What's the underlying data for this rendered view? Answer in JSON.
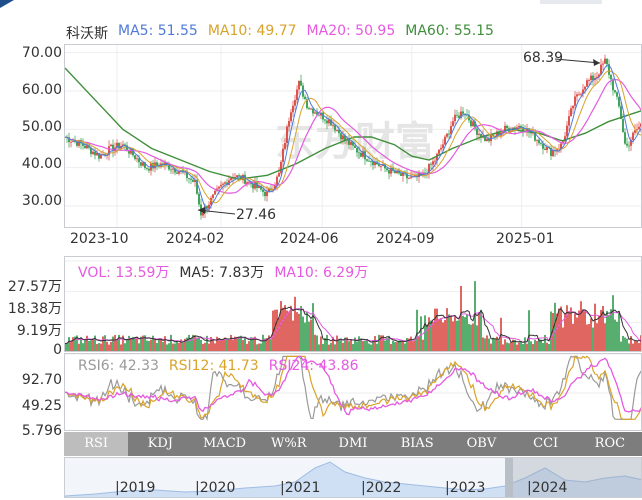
{
  "window": {
    "title": "科沃斯"
  },
  "main_legend": {
    "name": "科沃斯",
    "items": [
      {
        "label": "MA5: 51.55",
        "color": "#4f7bd8"
      },
      {
        "label": "MA10: 49.77",
        "color": "#d9a32b"
      },
      {
        "label": "MA20: 50.95",
        "color": "#e55ae0"
      },
      {
        "label": "MA60: 55.15",
        "color": "#3f8f3a"
      }
    ]
  },
  "watermark": "东方财富",
  "vol_legend": {
    "items": [
      {
        "label": "VOL: 13.59万",
        "color": "#e55ae0"
      },
      {
        "label": "MA5: 7.83万",
        "color": "#333333"
      },
      {
        "label": "MA10: 6.29万",
        "color": "#e55ae0"
      }
    ]
  },
  "rsi_legend": {
    "items": [
      {
        "label": "RSI6: 42.33",
        "color": "#9a9a9a"
      },
      {
        "label": "RSI12: 41.73",
        "color": "#d9a32b"
      },
      {
        "label": "RSI24: 43.86",
        "color": "#e55ae0"
      }
    ]
  },
  "tabs": [
    "RSI",
    "KDJ",
    "MACD",
    "W%R",
    "DMI",
    "BIAS",
    "OBV",
    "CCI",
    "ROC"
  ],
  "active_tab": "RSI",
  "navigator": {
    "years": [
      "2019",
      "2020",
      "2021",
      "2022",
      "2023",
      "2024"
    ]
  },
  "chart_data": [
    {
      "type": "line",
      "title": "科沃斯",
      "x_ticks": [
        "2023-10",
        "2024-02",
        "2024-06",
        "2024-09",
        "2025-01"
      ],
      "y_ticks": [
        "70.00",
        "60.00",
        "50.00",
        "40.00",
        "30.00"
      ],
      "ylim": [
        24,
        72
      ],
      "annotations": [
        {
          "text": "68.39",
          "value": 68.39,
          "type": "high"
        },
        {
          "text": "27.46",
          "value": 27.46,
          "type": "low"
        }
      ],
      "price_path": [
        {
          "x": 0,
          "y": 48
        },
        {
          "x": 0.03,
          "y": 46
        },
        {
          "x": 0.06,
          "y": 43
        },
        {
          "x": 0.08,
          "y": 45
        },
        {
          "x": 0.1,
          "y": 46
        },
        {
          "x": 0.12,
          "y": 43
        },
        {
          "x": 0.14,
          "y": 40
        },
        {
          "x": 0.17,
          "y": 41
        },
        {
          "x": 0.2,
          "y": 39
        },
        {
          "x": 0.225,
          "y": 36
        },
        {
          "x": 0.235,
          "y": 28
        },
        {
          "x": 0.245,
          "y": 30
        },
        {
          "x": 0.27,
          "y": 35
        },
        {
          "x": 0.29,
          "y": 38
        },
        {
          "x": 0.31,
          "y": 37
        },
        {
          "x": 0.33,
          "y": 35
        },
        {
          "x": 0.35,
          "y": 33
        },
        {
          "x": 0.37,
          "y": 38
        },
        {
          "x": 0.39,
          "y": 55
        },
        {
          "x": 0.405,
          "y": 62
        },
        {
          "x": 0.42,
          "y": 56
        },
        {
          "x": 0.44,
          "y": 54
        },
        {
          "x": 0.46,
          "y": 52
        },
        {
          "x": 0.48,
          "y": 48
        },
        {
          "x": 0.5,
          "y": 45
        },
        {
          "x": 0.52,
          "y": 43
        },
        {
          "x": 0.55,
          "y": 40
        },
        {
          "x": 0.58,
          "y": 38
        },
        {
          "x": 0.6,
          "y": 37
        },
        {
          "x": 0.62,
          "y": 38
        },
        {
          "x": 0.64,
          "y": 42
        },
        {
          "x": 0.66,
          "y": 48
        },
        {
          "x": 0.67,
          "y": 52
        },
        {
          "x": 0.69,
          "y": 55
        },
        {
          "x": 0.71,
          "y": 50
        },
        {
          "x": 0.73,
          "y": 47
        },
        {
          "x": 0.76,
          "y": 50
        },
        {
          "x": 0.79,
          "y": 51
        },
        {
          "x": 0.82,
          "y": 47
        },
        {
          "x": 0.84,
          "y": 44
        },
        {
          "x": 0.86,
          "y": 46
        },
        {
          "x": 0.88,
          "y": 57
        },
        {
          "x": 0.9,
          "y": 62
        },
        {
          "x": 0.92,
          "y": 64
        },
        {
          "x": 0.935,
          "y": 68
        },
        {
          "x": 0.95,
          "y": 60
        },
        {
          "x": 0.96,
          "y": 55
        },
        {
          "x": 0.97,
          "y": 45
        },
        {
          "x": 0.985,
          "y": 49
        },
        {
          "x": 1,
          "y": 52
        }
      ],
      "ma60_path": [
        {
          "x": 0,
          "y": 66
        },
        {
          "x": 0.05,
          "y": 58
        },
        {
          "x": 0.1,
          "y": 50
        },
        {
          "x": 0.15,
          "y": 45
        },
        {
          "x": 0.2,
          "y": 42
        },
        {
          "x": 0.25,
          "y": 39
        },
        {
          "x": 0.3,
          "y": 37
        },
        {
          "x": 0.35,
          "y": 38
        },
        {
          "x": 0.4,
          "y": 41
        },
        {
          "x": 0.45,
          "y": 45
        },
        {
          "x": 0.5,
          "y": 48
        },
        {
          "x": 0.53,
          "y": 48
        },
        {
          "x": 0.57,
          "y": 46
        },
        {
          "x": 0.6,
          "y": 43
        },
        {
          "x": 0.63,
          "y": 42
        },
        {
          "x": 0.67,
          "y": 45
        },
        {
          "x": 0.72,
          "y": 48
        },
        {
          "x": 0.77,
          "y": 50
        },
        {
          "x": 0.82,
          "y": 49
        },
        {
          "x": 0.86,
          "y": 47
        },
        {
          "x": 0.9,
          "y": 49
        },
        {
          "x": 0.94,
          "y": 52
        },
        {
          "x": 1,
          "y": 55
        }
      ]
    },
    {
      "type": "bar",
      "title": "VOL",
      "y_ticks": [
        "27.57万",
        "18.38万",
        "9.19万",
        "0"
      ],
      "ylim": [
        0,
        27.57
      ],
      "unit": "万"
    },
    {
      "type": "line",
      "title": "RSI",
      "y_ticks": [
        "92.70",
        "49.25",
        "5.796"
      ],
      "ylim": [
        5.796,
        92.7
      ],
      "series": [
        {
          "name": "RSI6",
          "values": [
            42.33
          ]
        },
        {
          "name": "RSI12",
          "values": [
            41.73
          ]
        },
        {
          "name": "RSI24",
          "values": [
            43.86
          ]
        }
      ]
    }
  ]
}
